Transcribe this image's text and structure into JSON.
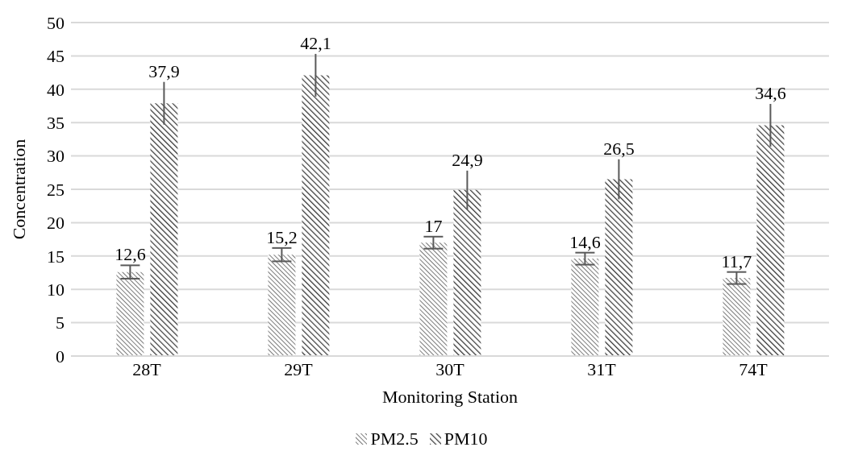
{
  "chart_data": {
    "type": "bar",
    "xlabel": "Monitoring Station",
    "ylabel": "Concentration",
    "categories": [
      "28T",
      "29T",
      "30T",
      "31T",
      "74T"
    ],
    "series": [
      {
        "name": "PM2.5",
        "color": "#404040",
        "values": [
          12.6,
          15.2,
          17,
          14.6,
          11.7
        ],
        "errors": [
          1,
          1,
          0.9,
          0.9,
          0.9
        ],
        "value_labels": [
          "12,6",
          "15,2",
          "17",
          "14,6",
          "11,7"
        ]
      },
      {
        "name": "PM10",
        "color": "#303030",
        "values": [
          37.9,
          42.1,
          24.9,
          26.5,
          34.6
        ],
        "errors": [
          3.2,
          3.2,
          2.9,
          3,
          3.2
        ],
        "value_labels": [
          "37,9",
          "42,1",
          "24,9",
          "26,5",
          "34,6"
        ]
      }
    ],
    "ylim": [
      0,
      50
    ],
    "yticks": [
      0,
      5,
      10,
      15,
      20,
      25,
      30,
      35,
      40,
      45,
      50
    ],
    "grid": "y",
    "legend": "bottom"
  }
}
